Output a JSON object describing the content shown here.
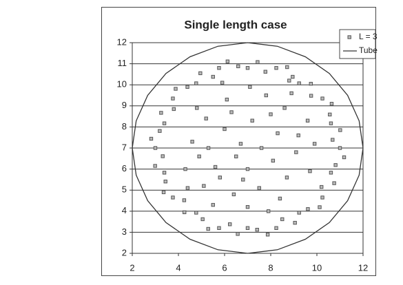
{
  "chart_data": {
    "type": "scatter",
    "title": "Single length case",
    "xlim": [
      2,
      12
    ],
    "xticks": [
      2,
      4,
      6,
      8,
      10,
      12
    ],
    "ylim": [
      2,
      12
    ],
    "yticks": [
      2,
      3,
      4,
      5,
      6,
      7,
      8,
      9,
      10,
      11,
      12
    ],
    "grid": true,
    "legend": "top-right",
    "series": [
      {
        "name": "L = 3",
        "kind": "marker",
        "color": "#555555",
        "x": [
          11.0,
          10.68,
          11.01,
          10.61,
          10.56,
          10.64,
          10.24,
          9.75,
          9.74,
          9.23,
          8.95,
          8.71,
          8.24,
          7.77,
          7.43,
          7.0,
          6.59,
          6.13,
          5.76,
          5.5,
          4.95,
          4.77,
          4.39,
          3.88,
          3.76,
          3.8,
          3.25,
          3.39,
          3.19,
          2.82,
          3.0,
          3.32,
          2.99,
          3.39,
          3.44,
          3.36,
          3.76,
          4.25,
          4.26,
          4.77,
          5.05,
          5.29,
          5.76,
          6.23,
          6.57,
          7.0,
          7.41,
          7.87,
          8.24,
          8.5,
          9.05,
          9.23,
          9.61,
          10.12,
          10.24,
          10.2,
          10.75,
          10.61,
          10.81,
          11.18,
          5.2,
          6.1,
          7.8,
          8.6,
          9.2,
          8.1,
          6.7,
          5.6,
          4.6,
          5.1,
          6.4,
          7.5,
          8.7,
          9.1,
          7.2,
          6.0,
          4.8,
          5.9,
          7.1,
          8.9,
          9.6,
          8.3,
          7.0,
          5.8,
          4.3,
          5.5,
          7.0,
          8.4,
          9.7,
          6.5,
          7.6,
          5.3,
          6.8,
          8.0,
          4.9,
          9.9,
          6.3,
          7.9,
          4.4,
          8.8
        ],
        "y": [
          7.0,
          7.39,
          7.85,
          8.17,
          8.59,
          9.1,
          9.35,
          9.48,
          10.05,
          10.07,
          10.38,
          10.84,
          10.8,
          10.62,
          11.08,
          10.8,
          10.88,
          11.11,
          10.8,
          10.38,
          10.55,
          10.07,
          9.9,
          9.81,
          9.35,
          8.85,
          8.67,
          8.17,
          7.81,
          7.44,
          7.0,
          6.61,
          6.15,
          5.83,
          5.41,
          4.9,
          4.65,
          4.52,
          3.95,
          3.93,
          3.62,
          3.16,
          3.2,
          3.38,
          2.92,
          3.2,
          3.12,
          2.89,
          3.2,
          3.62,
          3.45,
          3.93,
          4.1,
          4.19,
          4.65,
          5.15,
          5.33,
          5.83,
          6.19,
          6.56,
          8.4,
          9.3,
          9.5,
          8.9,
          7.6,
          6.4,
          7.2,
          6.1,
          7.3,
          5.2,
          4.8,
          5.1,
          5.6,
          6.8,
          8.3,
          7.9,
          8.9,
          10.1,
          9.9,
          9.6,
          8.3,
          7.7,
          6.0,
          5.6,
          6.0,
          4.3,
          4.2,
          4.6,
          5.9,
          6.6,
          7.0,
          7.0,
          5.5,
          8.6,
          6.6,
          7.2,
          8.7,
          4.0,
          5.1,
          10.2
        ]
      },
      {
        "name": "Tube",
        "kind": "line",
        "color": "#333333",
        "x": [
          12,
          11.83,
          11.33,
          10.54,
          9.5,
          8.29,
          7,
          5.71,
          4.5,
          3.46,
          2.67,
          2.17,
          2,
          2.17,
          2.67,
          3.46,
          4.5,
          5.71,
          7,
          8.29,
          9.5,
          10.54,
          11.33,
          11.83,
          12
        ],
        "y": [
          7,
          8.29,
          9.5,
          10.54,
          11.33,
          11.83,
          12,
          11.83,
          11.33,
          10.54,
          9.5,
          8.29,
          7,
          5.71,
          4.5,
          3.46,
          2.67,
          2.17,
          2,
          2.17,
          2.67,
          3.46,
          4.5,
          5.71,
          7
        ]
      }
    ]
  }
}
